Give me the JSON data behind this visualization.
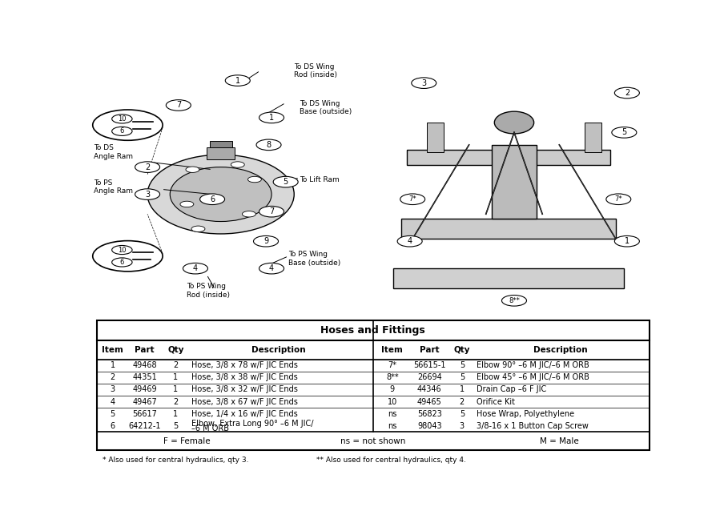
{
  "title": "Hoses and Fittings",
  "table_header": [
    "Item",
    "Part",
    "Qty",
    "Description",
    "Item",
    "Part",
    "Qty",
    "Description"
  ],
  "table_rows": [
    [
      "1",
      "49468",
      "2",
      "Hose, 3/8 x 78 w/F JIC Ends",
      "7*",
      "56615-1",
      "5",
      "Elbow 90° –6 M JIC/–6 M ORB"
    ],
    [
      "2",
      "44351",
      "1",
      "Hose, 3/8 x 38 w/F JIC Ends",
      "8**",
      "26694",
      "5",
      "Elbow 45° –6 M JIC/–6 M ORB"
    ],
    [
      "3",
      "49469",
      "1",
      "Hose, 3/8 x 32 w/F JIC Ends",
      "9",
      "44346",
      "1",
      "Drain Cap –6 F JIC"
    ],
    [
      "4",
      "49467",
      "2",
      "Hose, 3/8 x 67 w/F JIC Ends",
      "10",
      "49465",
      "2",
      "Orifice Kit"
    ],
    [
      "5",
      "56617",
      "1",
      "Hose, 1/4 x 16 w/F JIC Ends",
      "ns",
      "56823",
      "5",
      "Hose Wrap, Polyethylene"
    ],
    [
      "6",
      "64212-1",
      "5",
      "Elbow, Extra Long 90° –6 M JIC/\n–6 M ORB",
      "ns",
      "98043",
      "3",
      "3/8-16 x 1 Button Cap Screw"
    ]
  ],
  "footer": [
    "F = Female",
    "ns = not shown",
    "M = Male"
  ],
  "footnotes": [
    "* Also used for central hydraulics, qty 3.",
    "** Also used for central hydraulics, qty 4."
  ],
  "bg_color": "#ffffff",
  "border_color": "#000000",
  "header_color": "#ffffff",
  "text_color": "#000000"
}
